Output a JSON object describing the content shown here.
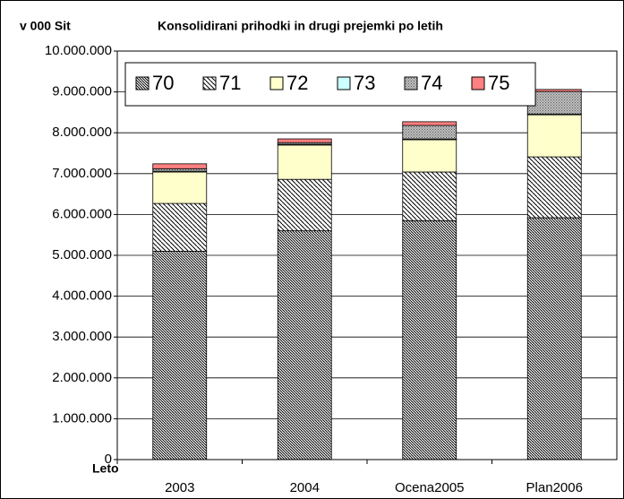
{
  "chart_data": {
    "type": "stacked_bar",
    "title": "Konsolidirani prihodki in drugi prejemki po letih",
    "y_label": "v 000 Sit",
    "x_label": "Leto",
    "categories": [
      "2003",
      "2004",
      "Ocena2005",
      "Plan2006"
    ],
    "series": [
      {
        "name": "70",
        "color": "#ffffff",
        "values": [
          5100000,
          5600000,
          5850000,
          5920000
        ]
      },
      {
        "name": "71",
        "color": "#ffffff",
        "values": [
          1170000,
          1260000,
          1190000,
          1490000
        ]
      },
      {
        "name": "72",
        "color": "#ffffcc",
        "values": [
          770000,
          840000,
          790000,
          1030000
        ]
      },
      {
        "name": "73",
        "color": "#ccffff",
        "values": [
          20000,
          20000,
          20000,
          20000
        ]
      },
      {
        "name": "74",
        "color": "#c0c0c0",
        "values": [
          60000,
          40000,
          330000,
          550000
        ]
      },
      {
        "name": "75",
        "color": "#ff8080",
        "values": [
          120000,
          90000,
          90000,
          50000
        ]
      }
    ],
    "ylim": [
      0,
      10000000
    ],
    "yticks": [
      0,
      {
        "value": 1000000,
        "label": "1.000.000"
      },
      {
        "value": 2000000,
        "label": "2.000.000"
      },
      {
        "value": 3000000,
        "label": "3.000.000"
      },
      {
        "value": 4000000,
        "label": "4.000.000"
      },
      {
        "value": 5000000,
        "label": "5.000.000"
      },
      {
        "value": 6000000,
        "label": "6.000.000"
      },
      {
        "value": 7000000,
        "label": "7.000.000"
      },
      {
        "value": 8000000,
        "label": "8.000.000"
      },
      {
        "value": 9000000,
        "label": "9.000.000"
      },
      {
        "value": 10000000,
        "label": "10.000.000"
      }
    ],
    "grid": true,
    "legend": "top-left"
  }
}
